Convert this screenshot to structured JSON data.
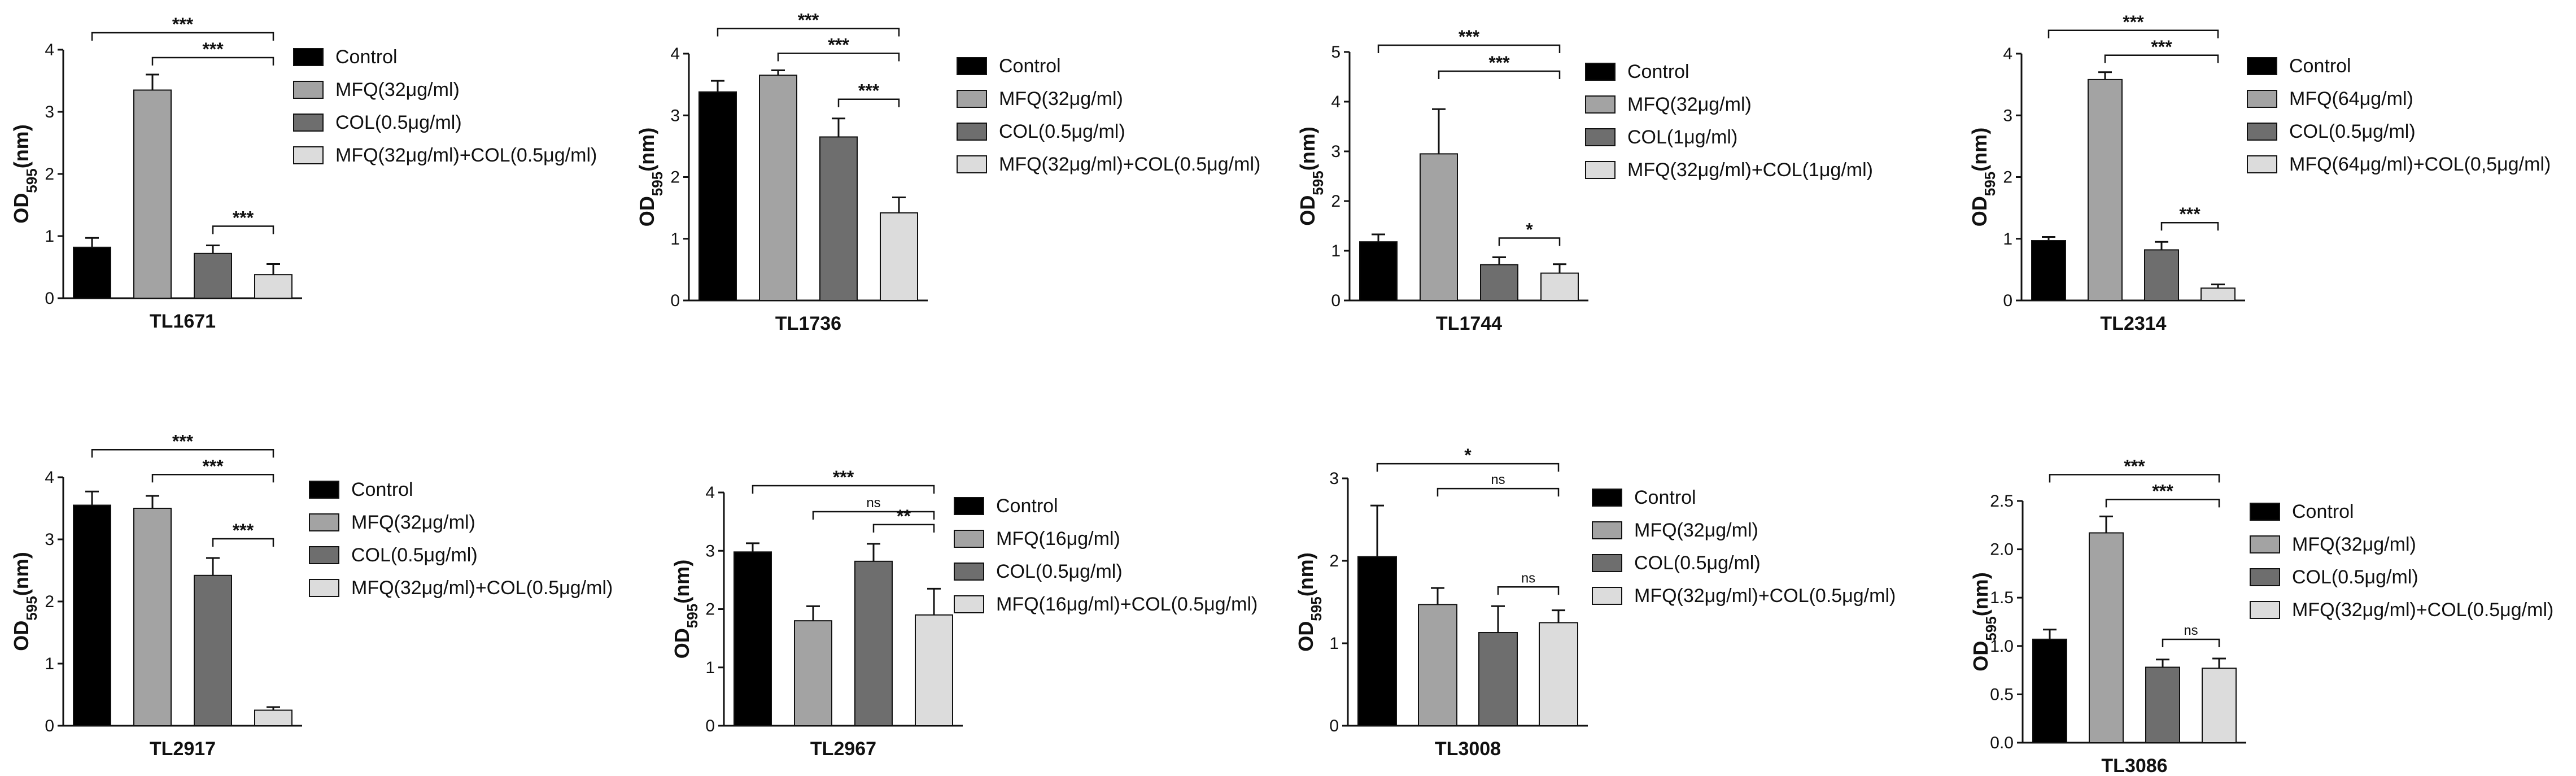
{
  "colors": {
    "Control": "#000000",
    "MFQ": "#a3a3a3",
    "COL": "#6e6e6e",
    "Combo": "#dcdcdc"
  },
  "chart_data": [
    {
      "type": "bar",
      "title": "TL1671",
      "ylabel": "OD595(nm)",
      "ylim": [
        0,
        4
      ],
      "yticks": [
        "0",
        "1",
        "2",
        "3",
        "4"
      ],
      "categories": [
        "Control",
        "MFQ(32μg/ml)",
        "COL(0.5μg/ml)",
        "MFQ(32μg/ml)+COL(0.5μg/ml)"
      ],
      "values": [
        0.82,
        3.35,
        0.72,
        0.38
      ],
      "errors": [
        0.15,
        0.25,
        0.13,
        0.17
      ],
      "significance": [
        {
          "from": 0,
          "to": 3,
          "label": "***"
        },
        {
          "from": 1,
          "to": 3,
          "label": "***"
        },
        {
          "from": 2,
          "to": 3,
          "label": "***"
        }
      ]
    },
    {
      "type": "bar",
      "title": "TL1736",
      "ylabel": "OD595(nm)",
      "ylim": [
        0,
        4
      ],
      "yticks": [
        "0",
        "1",
        "2",
        "3",
        "4"
      ],
      "categories": [
        "Control",
        "MFQ(32μg/ml)",
        "COL(0.5μg/ml)",
        "MFQ(32μg/ml)+COL(0.5μg/ml)"
      ],
      "values": [
        3.38,
        3.65,
        2.65,
        1.42
      ],
      "errors": [
        0.18,
        0.08,
        0.3,
        0.25
      ],
      "significance": [
        {
          "from": 0,
          "to": 3,
          "label": "***"
        },
        {
          "from": 1,
          "to": 3,
          "label": "***"
        },
        {
          "from": 2,
          "to": 3,
          "label": "***"
        }
      ]
    },
    {
      "type": "bar",
      "title": "TL1744",
      "ylabel": "OD595(nm)",
      "ylim": [
        0,
        5
      ],
      "yticks": [
        "0",
        "1",
        "2",
        "3",
        "4",
        "5"
      ],
      "categories": [
        "Control",
        "MFQ(32μg/ml)",
        "COL(1μg/ml)",
        "MFQ(32μg/ml)+COL(1μg/ml)"
      ],
      "values": [
        1.18,
        2.95,
        0.72,
        0.55
      ],
      "errors": [
        0.15,
        0.9,
        0.15,
        0.18
      ],
      "significance": [
        {
          "from": 0,
          "to": 3,
          "label": "***"
        },
        {
          "from": 1,
          "to": 3,
          "label": "***"
        },
        {
          "from": 2,
          "to": 3,
          "label": "*"
        }
      ]
    },
    {
      "type": "bar",
      "title": "TL2314",
      "ylabel": "OD595(nm)",
      "ylim": [
        0,
        4
      ],
      "yticks": [
        "0",
        "1",
        "2",
        "3",
        "4"
      ],
      "categories": [
        "Control",
        "MFQ(64μg/ml)",
        "COL(0.5μg/ml)",
        "MFQ(64μg/ml)+COL(0,5μg/ml)"
      ],
      "values": [
        0.97,
        3.58,
        0.82,
        0.2
      ],
      "errors": [
        0.06,
        0.12,
        0.13,
        0.06
      ],
      "significance": [
        {
          "from": 0,
          "to": 3,
          "label": "***"
        },
        {
          "from": 1,
          "to": 3,
          "label": "***"
        },
        {
          "from": 2,
          "to": 3,
          "label": "***"
        }
      ]
    },
    {
      "type": "bar",
      "title": "TL2917",
      "ylabel": "OD595(nm)",
      "ylim": [
        0,
        4
      ],
      "yticks": [
        "0",
        "1",
        "2",
        "3",
        "4"
      ],
      "categories": [
        "Control",
        "MFQ(32μg/ml)",
        "COL(0.5μg/ml)",
        "MFQ(32μg/ml)+COL(0.5μg/ml)"
      ],
      "values": [
        3.55,
        3.5,
        2.42,
        0.25
      ],
      "errors": [
        0.22,
        0.2,
        0.28,
        0.05
      ],
      "significance": [
        {
          "from": 0,
          "to": 3,
          "label": "***"
        },
        {
          "from": 1,
          "to": 3,
          "label": "***"
        },
        {
          "from": 2,
          "to": 3,
          "label": "***"
        }
      ]
    },
    {
      "type": "bar",
      "title": "TL2967",
      "ylabel": "OD595(nm)",
      "ylim": [
        0,
        4
      ],
      "yticks": [
        "0",
        "1",
        "2",
        "3",
        "4"
      ],
      "categories": [
        "Control",
        "MFQ(16μg/ml)",
        "COL(0.5μg/ml)",
        "MFQ(16μg/ml)+COL(0.5μg/ml)"
      ],
      "values": [
        2.98,
        1.8,
        2.82,
        1.9
      ],
      "errors": [
        0.15,
        0.25,
        0.3,
        0.45
      ],
      "significance": [
        {
          "from": 0,
          "to": 3,
          "label": "***"
        },
        {
          "from": 1,
          "to": 3,
          "label": "ns"
        },
        {
          "from": 2,
          "to": 3,
          "label": "**"
        }
      ]
    },
    {
      "type": "bar",
      "title": "TL3008",
      "ylabel": "OD595(nm)",
      "ylim": [
        0,
        3
      ],
      "yticks": [
        "0",
        "1",
        "2",
        "3"
      ],
      "categories": [
        "Control",
        "MFQ(32μg/ml)",
        "COL(0.5μg/ml)",
        "MFQ(32μg/ml)+COL(0.5μg/ml)"
      ],
      "values": [
        2.05,
        1.47,
        1.13,
        1.25
      ],
      "errors": [
        0.62,
        0.2,
        0.32,
        0.15
      ],
      "significance": [
        {
          "from": 0,
          "to": 3,
          "label": "*"
        },
        {
          "from": 1,
          "to": 3,
          "label": "ns"
        },
        {
          "from": 2,
          "to": 3,
          "label": "ns"
        }
      ]
    },
    {
      "type": "bar",
      "title": "TL3086",
      "ylabel": "OD595(nm)",
      "ylim": [
        0,
        2.5
      ],
      "yticks": [
        "0.0",
        "0.5",
        "1.0",
        "1.5",
        "2.0",
        "2.5"
      ],
      "categories": [
        "Control",
        "MFQ(32μg/ml)",
        "COL(0.5μg/ml)",
        "MFQ(32μg/ml)+COL(0.5μg/ml)"
      ],
      "values": [
        1.07,
        2.17,
        0.78,
        0.77
      ],
      "errors": [
        0.1,
        0.17,
        0.08,
        0.1
      ],
      "significance": [
        {
          "from": 0,
          "to": 3,
          "label": "***"
        },
        {
          "from": 1,
          "to": 3,
          "label": "***"
        },
        {
          "from": 2,
          "to": 3,
          "label": "ns"
        }
      ]
    }
  ]
}
